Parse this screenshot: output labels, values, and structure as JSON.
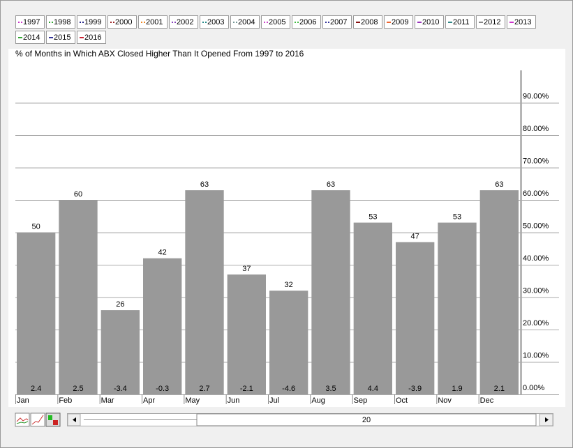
{
  "chart_data": {
    "type": "bar",
    "title": "% of Months in Which ABX Closed Higher Than It Opened From 1997 to 2016",
    "legend_items": [
      {
        "label": "1997",
        "color": "#cc33cc",
        "style": "dotted"
      },
      {
        "label": "1998",
        "color": "#33aa33",
        "style": "dotted"
      },
      {
        "label": "1999",
        "color": "#222288",
        "style": "dotted"
      },
      {
        "label": "2000",
        "color": "#992222",
        "style": "dotted"
      },
      {
        "label": "2001",
        "color": "#ee8822",
        "style": "dotted"
      },
      {
        "label": "2002",
        "color": "#8844bb",
        "style": "dotted"
      },
      {
        "label": "2003",
        "color": "#228888",
        "style": "dotted"
      },
      {
        "label": "2004",
        "color": "#779999",
        "style": "dotted"
      },
      {
        "label": "2005",
        "color": "#cc44cc",
        "style": "dotted"
      },
      {
        "label": "2006",
        "color": "#44bb44",
        "style": "dotted"
      },
      {
        "label": "2007",
        "color": "#333399",
        "style": "dotted"
      },
      {
        "label": "2008",
        "color": "#881111",
        "style": "solid"
      },
      {
        "label": "2009",
        "color": "#ee6633",
        "style": "solid"
      },
      {
        "label": "2010",
        "color": "#9933bb",
        "style": "solid"
      },
      {
        "label": "2011",
        "color": "#338888",
        "style": "solid"
      },
      {
        "label": "2012",
        "color": "#888888",
        "style": "solid"
      },
      {
        "label": "2013",
        "color": "#cc33cc",
        "style": "solid"
      },
      {
        "label": "2014",
        "color": "#33aa33",
        "style": "solid"
      },
      {
        "label": "2015",
        "color": "#333399",
        "style": "solid"
      },
      {
        "label": "2016",
        "color": "#cc2233",
        "style": "solid"
      }
    ],
    "categories": [
      "Jan",
      "Feb",
      "Mar",
      "Apr",
      "May",
      "Jun",
      "Jul",
      "Aug",
      "Sep",
      "Oct",
      "Nov",
      "Dec"
    ],
    "values": [
      50,
      60,
      26,
      42,
      63,
      37,
      32,
      63,
      53,
      47,
      53,
      63
    ],
    "inner_labels": [
      2.4,
      2.5,
      -3.4,
      -0.3,
      2.7,
      -2.1,
      -4.6,
      3.5,
      4.4,
      -3.9,
      1.9,
      2.1
    ],
    "color": "#999999",
    "ylim": [
      0,
      100
    ],
    "yticks": [
      {
        "value": 0,
        "label": "0.00%"
      },
      {
        "value": 10,
        "label": "10.00%"
      },
      {
        "value": 20,
        "label": "20.00%"
      },
      {
        "value": 30,
        "label": "30.00%"
      },
      {
        "value": 40,
        "label": "40.00%"
      },
      {
        "value": 50,
        "label": "50.00%"
      },
      {
        "value": 60,
        "label": "60.00%"
      },
      {
        "value": 70,
        "label": "70.00%"
      },
      {
        "value": 80,
        "label": "80.00%"
      },
      {
        "value": 90,
        "label": "90.00%"
      }
    ],
    "grid": true,
    "scroll_label": "20"
  }
}
